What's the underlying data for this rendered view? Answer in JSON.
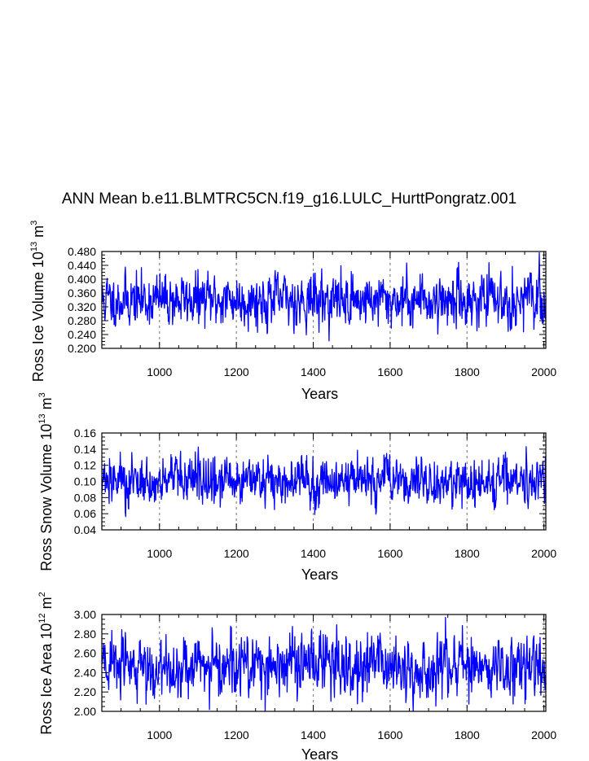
{
  "figure": {
    "title": "ANN Mean b.e11.BLMTRC5CN.f19_g16.LULC_HurttPongratz.001"
  },
  "chart_data": [
    {
      "type": "line",
      "name": "ross-ice-volume",
      "title": "ANN Mean b.e11.BLMTRC5CN.f19_g16.LULC_HurttPongratz.001",
      "ylabel": {
        "text": "Ross Ice Volume 10",
        "exp1": "13",
        "unit": " m",
        "exp2": "3"
      },
      "xlabel": "Years",
      "xlim": [
        850,
        2005
      ],
      "ylim": [
        0.2,
        0.48
      ],
      "xticks": [
        1000,
        1200,
        1400,
        1600,
        1800,
        2000
      ],
      "xtick_labels": [
        "1000",
        "1200",
        "1400",
        "1600",
        "1800",
        "2000"
      ],
      "yticks": [
        0.2,
        0.24,
        0.28,
        0.32,
        0.36,
        0.4,
        0.44,
        0.48
      ],
      "ytick_labels": [
        "0.200",
        "0.240",
        "0.280",
        "0.320",
        "0.360",
        "0.400",
        "0.440",
        "0.480"
      ],
      "grid_x": "dotted vertical at x ticks",
      "series": [
        {
          "name": "Ross Ice Volume",
          "color": "#0000ff",
          "mean": 0.34,
          "amplitude": 0.035,
          "min": 0.2,
          "max": 0.48
        }
      ]
    },
    {
      "type": "line",
      "name": "ross-snow-volume",
      "ylabel": {
        "text": "Ross Snow Volume 10",
        "exp1": "13",
        "unit": " m",
        "exp2": "3"
      },
      "xlabel": "Years",
      "xlim": [
        850,
        2005
      ],
      "ylim": [
        0.04,
        0.16
      ],
      "xticks": [
        1000,
        1200,
        1400,
        1600,
        1800,
        2000
      ],
      "xtick_labels": [
        "1000",
        "1200",
        "1400",
        "1600",
        "1800",
        "2000"
      ],
      "yticks": [
        0.04,
        0.06,
        0.08,
        0.1,
        0.12,
        0.14,
        0.16
      ],
      "ytick_labels": [
        "0.04",
        "0.06",
        "0.08",
        "0.10",
        "0.12",
        "0.14",
        "0.16"
      ],
      "grid_x": "dotted vertical at x ticks",
      "series": [
        {
          "name": "Ross Snow Volume",
          "color": "#0000ff",
          "mean": 0.1,
          "amplitude": 0.014,
          "min": 0.056,
          "max": 0.145
        }
      ]
    },
    {
      "type": "line",
      "name": "ross-ice-area",
      "ylabel": {
        "text": "Ross Ice Area 10",
        "exp1": "12",
        "unit": " m",
        "exp2": "2"
      },
      "xlabel": "Years",
      "xlim": [
        850,
        2005
      ],
      "ylim": [
        2.0,
        3.0
      ],
      "xticks": [
        1000,
        1200,
        1400,
        1600,
        1800,
        2000
      ],
      "xtick_labels": [
        "1000",
        "1200",
        "1400",
        "1600",
        "1800",
        "2000"
      ],
      "yticks": [
        2.0,
        2.2,
        2.4,
        2.6,
        2.8,
        3.0
      ],
      "ytick_labels": [
        "2.00",
        "2.20",
        "2.40",
        "2.60",
        "2.80",
        "3.00"
      ],
      "grid_x": "dotted vertical at x ticks",
      "series": [
        {
          "name": "Ross Ice Area",
          "color": "#0000ff",
          "mean": 2.47,
          "amplitude": 0.15,
          "min": 2.0,
          "max": 2.97
        }
      ]
    }
  ]
}
